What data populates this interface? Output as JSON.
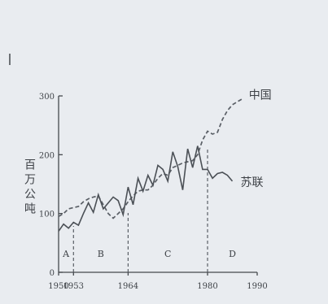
{
  "chart_data": {
    "type": "line",
    "ylabel": "百万公吨",
    "xlim": [
      1950,
      1990
    ],
    "ylim": [
      0,
      300
    ],
    "x_ticks": [
      1950,
      1953,
      1964,
      1980,
      1990
    ],
    "x_tick_labels": [
      "1950",
      "1953",
      "1964",
      "1980",
      "1990"
    ],
    "y_ticks": [
      0,
      100,
      200,
      300
    ],
    "y_tick_labels": [
      "0",
      "100",
      "200",
      "300"
    ],
    "segment_dividers": [
      1953,
      1964,
      1980
    ],
    "segments": [
      {
        "label": "A",
        "x": 1951.5
      },
      {
        "label": "B",
        "x": 1958.5
      },
      {
        "label": "C",
        "x": 1972
      },
      {
        "label": "D",
        "x": 1985
      }
    ],
    "series": [
      {
        "name": "中国",
        "style": "dashed",
        "points": [
          [
            1950,
            95
          ],
          [
            1951,
            100
          ],
          [
            1952,
            108
          ],
          [
            1953,
            110
          ],
          [
            1954,
            112
          ],
          [
            1955,
            120
          ],
          [
            1956,
            125
          ],
          [
            1957,
            128
          ],
          [
            1958,
            130
          ],
          [
            1959,
            115
          ],
          [
            1960,
            100
          ],
          [
            1961,
            92
          ],
          [
            1962,
            100
          ],
          [
            1963,
            108
          ],
          [
            1964,
            120
          ],
          [
            1965,
            130
          ],
          [
            1966,
            138
          ],
          [
            1967,
            140
          ],
          [
            1968,
            140
          ],
          [
            1969,
            148
          ],
          [
            1970,
            160
          ],
          [
            1971,
            168
          ],
          [
            1972,
            165
          ],
          [
            1973,
            178
          ],
          [
            1974,
            182
          ],
          [
            1975,
            186
          ],
          [
            1976,
            188
          ],
          [
            1977,
            190
          ],
          [
            1978,
            200
          ],
          [
            1979,
            225
          ],
          [
            1980,
            240
          ],
          [
            1981,
            235
          ],
          [
            1982,
            238
          ],
          [
            1983,
            260
          ],
          [
            1984,
            275
          ],
          [
            1985,
            285
          ],
          [
            1986,
            290
          ],
          [
            1987,
            295
          ]
        ]
      },
      {
        "name": "苏联",
        "style": "solid",
        "points": [
          [
            1950,
            70
          ],
          [
            1951,
            82
          ],
          [
            1952,
            75
          ],
          [
            1953,
            85
          ],
          [
            1954,
            80
          ],
          [
            1955,
            100
          ],
          [
            1956,
            118
          ],
          [
            1957,
            102
          ],
          [
            1958,
            132
          ],
          [
            1959,
            108
          ],
          [
            1960,
            118
          ],
          [
            1961,
            128
          ],
          [
            1962,
            122
          ],
          [
            1963,
            98
          ],
          [
            1964,
            145
          ],
          [
            1965,
            115
          ],
          [
            1966,
            160
          ],
          [
            1967,
            138
          ],
          [
            1968,
            165
          ],
          [
            1969,
            148
          ],
          [
            1970,
            182
          ],
          [
            1971,
            175
          ],
          [
            1972,
            155
          ],
          [
            1973,
            205
          ],
          [
            1974,
            180
          ],
          [
            1975,
            140
          ],
          [
            1976,
            210
          ],
          [
            1977,
            178
          ],
          [
            1978,
            215
          ],
          [
            1979,
            175
          ],
          [
            1980,
            175
          ],
          [
            1981,
            160
          ],
          [
            1982,
            168
          ],
          [
            1983,
            170
          ],
          [
            1984,
            165
          ],
          [
            1985,
            155
          ]
        ]
      }
    ]
  }
}
